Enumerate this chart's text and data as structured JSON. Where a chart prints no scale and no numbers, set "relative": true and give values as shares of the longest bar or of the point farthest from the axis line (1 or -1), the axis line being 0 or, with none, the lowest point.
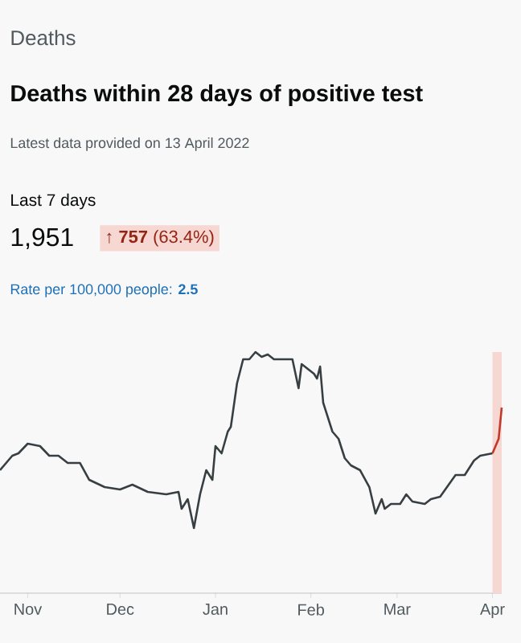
{
  "chart_data": {
    "type": "line",
    "title": "Deaths within 28 days of positive test",
    "subtitle": "Latest data provided on 13 April 2022",
    "annotations": [
      "Deaths",
      "Last 7 days",
      "1,951",
      "**↑ 757** (63.4%)",
      "Rate per 100,000 people: **2.5**"
    ],
    "relative": true,
    "grid": false,
    "xlim": [
      "2021-10-23",
      "2022-04-04"
    ],
    "xticks": [
      {
        "value": "2021-11-01",
        "label": "Nov"
      },
      {
        "value": "2021-12-01",
        "label": "Dec"
      },
      {
        "value": "2022-01-01",
        "label": "Jan"
      },
      {
        "value": "2022-02-01",
        "label": "Feb"
      },
      {
        "value": "2022-03-01",
        "label": "Mar"
      },
      {
        "value": "2022-04-01",
        "label": "Apr"
      }
    ],
    "bands": [
      {
        "axis": "x",
        "from": "2022-04-01",
        "to": "2022-04-04",
        "color": "#f6d7d2"
      }
    ],
    "series": [
      {
        "color": "#383f43",
        "x": [
          "2021-10-23",
          "2021-10-27",
          "2021-10-29",
          "2021-11-01",
          "2021-11-05",
          "2021-11-08",
          "2021-11-11",
          "2021-11-14",
          "2021-11-18",
          "2021-11-21",
          "2021-11-26",
          "2021-12-01",
          "2021-12-05",
          "2021-12-10",
          "2021-12-16",
          "2021-12-20",
          "2021-12-21",
          "2021-12-23",
          "2021-12-25",
          "2021-12-27",
          "2021-12-29",
          "2021-12-31",
          "2022-01-01",
          "2022-01-03",
          "2022-01-05",
          "2022-01-06",
          "2022-01-08",
          "2022-01-10",
          "2022-01-12",
          "2022-01-14",
          "2022-01-16",
          "2022-01-18",
          "2022-01-20",
          "2022-01-26",
          "2022-01-28",
          "2022-01-29",
          "2022-02-02",
          "2022-02-03",
          "2022-02-04",
          "2022-02-05",
          "2022-02-08",
          "2022-02-10",
          "2022-02-12",
          "2022-02-14",
          "2022-02-17",
          "2022-02-20",
          "2022-02-22",
          "2022-02-24",
          "2022-02-25",
          "2022-02-27",
          "2022-03-02",
          "2022-03-04",
          "2022-03-06",
          "2022-03-10",
          "2022-03-12",
          "2022-03-15",
          "2022-03-20",
          "2022-03-23",
          "2022-03-26",
          "2022-03-28",
          "2022-04-01"
        ],
        "values": [
          0.51,
          0.57,
          0.58,
          0.62,
          0.61,
          0.57,
          0.57,
          0.54,
          0.54,
          0.47,
          0.44,
          0.43,
          0.45,
          0.42,
          0.41,
          0.42,
          0.35,
          0.39,
          0.27,
          0.41,
          0.51,
          0.47,
          0.61,
          0.58,
          0.67,
          0.69,
          0.87,
          0.97,
          0.97,
          1,
          0.98,
          0.99,
          0.97,
          0.97,
          0.85,
          0.95,
          0.91,
          0.89,
          0.94,
          0.79,
          0.67,
          0.64,
          0.56,
          0.53,
          0.51,
          0.44,
          0.33,
          0.39,
          0.35,
          0.37,
          0.37,
          0.41,
          0.38,
          0.37,
          0.39,
          0.4,
          0.49,
          0.49,
          0.55,
          0.57,
          0.58
        ]
      },
      {
        "color": "#c0392b",
        "x": [
          "2022-04-01",
          "2022-04-02",
          "2022-04-03",
          "2022-04-04"
        ],
        "values": [
          0.58,
          0.61,
          0.64,
          0.77
        ]
      }
    ]
  }
}
